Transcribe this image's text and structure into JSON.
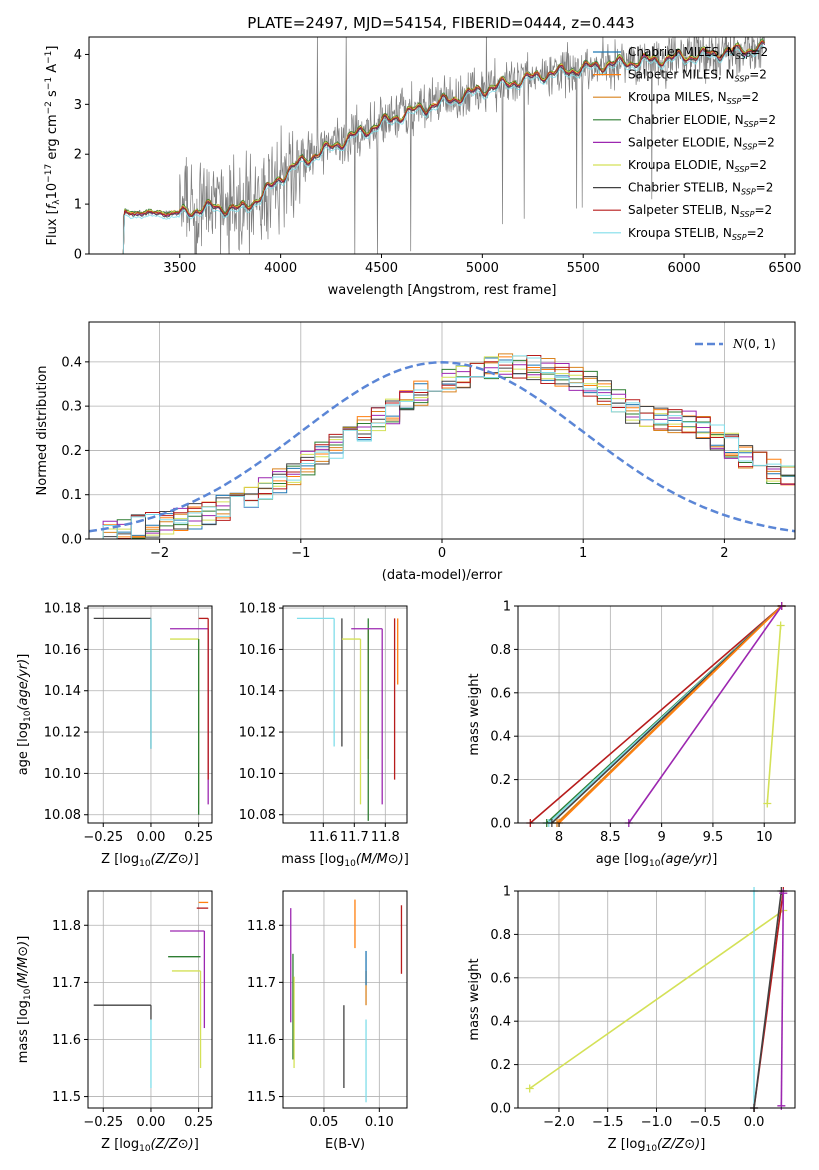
{
  "figure": {
    "title": "PLATE=2497, MJD=54154, FIBERID=0444, z=0.443"
  },
  "models": [
    {
      "label": "Chabrier MILES, N",
      "sub": "SSP",
      "suffix": "=2",
      "color": "#1f77b4"
    },
    {
      "label": "Salpeter MILES, N",
      "sub": "SSP",
      "suffix": "=2",
      "color": "#ff7f0e"
    },
    {
      "label": "Kroupa MILES, N",
      "sub": "SSP",
      "suffix": "=2",
      "color": "#d9831f"
    },
    {
      "label": "Chabrier ELODIE, N",
      "sub": "SSP",
      "suffix": "=2",
      "color": "#2e7d32"
    },
    {
      "label": "Salpeter ELODIE, N",
      "sub": "SSP",
      "suffix": "=2",
      "color": "#9c27b0"
    },
    {
      "label": "Kroupa ELODIE, N",
      "sub": "SSP",
      "suffix": "=2",
      "color": "#d4e157"
    },
    {
      "label": "Chabrier STELIB, N",
      "sub": "SSP",
      "suffix": "=2",
      "color": "#424242"
    },
    {
      "label": "Salpeter STELIB, N",
      "sub": "SSP",
      "suffix": "=2",
      "color": "#b71c1c"
    },
    {
      "label": "Kroupa STELIB, N",
      "sub": "SSP",
      "suffix": "=2",
      "color": "#80deea"
    }
  ],
  "chart_data": [
    {
      "id": "spectrum",
      "type": "line",
      "xlabel": "wavelength [Angstrom, rest frame]",
      "ylabel": "Flux [f_λ 10^-17 erg cm^-2 s^-1 A^-1]",
      "xlim": [
        3050,
        6550
      ],
      "ylim": [
        0,
        4.35
      ],
      "xticks": [
        3500,
        4000,
        4500,
        5000,
        5500,
        6000,
        6500
      ],
      "yticks": [
        0,
        1,
        2,
        3,
        4
      ],
      "grid": false,
      "legend": "top-right",
      "x_start": 3220,
      "x_end": 6400,
      "data_color": "#7f7f7f",
      "model_curve": [
        [
          3220,
          0.83
        ],
        [
          3500,
          0.82
        ],
        [
          3650,
          0.95
        ],
        [
          3800,
          0.9
        ],
        [
          3900,
          1.15
        ],
        [
          4000,
          1.55
        ],
        [
          4100,
          1.85
        ],
        [
          4250,
          2.15
        ],
        [
          4400,
          2.45
        ],
        [
          4600,
          2.8
        ],
        [
          4800,
          3.05
        ],
        [
          5000,
          3.3
        ],
        [
          5300,
          3.6
        ],
        [
          5600,
          3.8
        ],
        [
          5900,
          3.92
        ],
        [
          6200,
          4.05
        ],
        [
          6400,
          4.15
        ]
      ]
    },
    {
      "id": "residuals",
      "type": "histogram",
      "xlabel": "(data-model)/error",
      "ylabel": "Normed distribution",
      "xlim": [
        -2.5,
        2.5
      ],
      "ylim": [
        0,
        0.49
      ],
      "xticks": [
        -2,
        -1,
        0,
        1,
        2
      ],
      "yticks": [
        0.0,
        0.1,
        0.2,
        0.3,
        0.4
      ],
      "grid": true,
      "legend": "top-right",
      "gaussian_label": "N(0,1)",
      "gaussian_color": "#5b86d6",
      "bin_width": 0.1,
      "bins_from": -2.5,
      "base_values": [
        0.01,
        0.015,
        0.02,
        0.025,
        0.03,
        0.04,
        0.045,
        0.05,
        0.06,
        0.07,
        0.08,
        0.095,
        0.11,
        0.13,
        0.15,
        0.17,
        0.19,
        0.21,
        0.23,
        0.25,
        0.27,
        0.29,
        0.31,
        0.33,
        0.35,
        0.36,
        0.37,
        0.38,
        0.385,
        0.39,
        0.39,
        0.385,
        0.38,
        0.37,
        0.36,
        0.35,
        0.33,
        0.31,
        0.29,
        0.28,
        0.27,
        0.27,
        0.26,
        0.25,
        0.23,
        0.21,
        0.19,
        0.17,
        0.15,
        0.14,
        0.13,
        0.12,
        0.11,
        0.1,
        0.09,
        0.08,
        0.07,
        0.06,
        0.055,
        0.05
      ]
    },
    {
      "id": "age-vs-z",
      "type": "errorbar",
      "xlabel": "Z [log10(Z/Z⊙)]",
      "ylabel": "age [log10(age/yr)]",
      "xlim": [
        -0.33,
        0.32
      ],
      "ylim": [
        10.076,
        10.181
      ],
      "xticks": [
        -0.25,
        0.0,
        0.25
      ],
      "xtick_labels": [
        "−0.25",
        "0.00",
        "0.25"
      ],
      "yticks": [
        10.08,
        10.1,
        10.12,
        10.14,
        10.16,
        10.18
      ],
      "grid": true,
      "points": [
        {
          "model": 6,
          "x": 0.0,
          "y": 10.175,
          "xerr": [
            0.3,
            0.0
          ],
          "yerr": [
            0.063,
            0.0
          ]
        },
        {
          "model": 8,
          "x": 0.0,
          "y": 10.175,
          "xerr": [
            0.0,
            0.0
          ],
          "yerr": [
            0.063,
            0.0
          ]
        },
        {
          "model": 4,
          "x": 0.3,
          "y": 10.17,
          "xerr": [
            0.2,
            0.0
          ],
          "yerr": [
            0.085,
            0.0
          ]
        },
        {
          "model": 5,
          "x": 0.25,
          "y": 10.165,
          "xerr": [
            0.15,
            0.0
          ],
          "yerr": [
            0.08,
            0.0
          ]
        },
        {
          "model": 7,
          "x": 0.3,
          "y": 10.175,
          "xerr": [
            0.05,
            0.0
          ],
          "yerr": [
            0.078,
            0.0
          ]
        },
        {
          "model": 3,
          "x": 0.25,
          "y": 10.165,
          "xerr": [
            0.0,
            0.0
          ],
          "yerr": [
            0.085,
            0.0
          ]
        }
      ]
    },
    {
      "id": "age-vs-mass",
      "type": "errorbar",
      "xlabel": "mass [log10(M/M⊙)]",
      "ylabel": "",
      "xlim": [
        11.47,
        11.87
      ],
      "ylim": [
        10.076,
        10.181
      ],
      "xticks": [
        11.6,
        11.7,
        11.8
      ],
      "yticks": [
        10.08,
        10.1,
        10.12,
        10.14,
        10.16,
        10.18
      ],
      "grid": true,
      "points": [
        {
          "model": 8,
          "x": 11.635,
          "y": 10.175,
          "xerr": [
            0.12,
            0.0
          ],
          "yerr": [
            0.062,
            0.0
          ]
        },
        {
          "model": 6,
          "x": 11.66,
          "y": 10.175,
          "xerr": [
            0.0,
            0.0
          ],
          "yerr": [
            0.062,
            0.0
          ]
        },
        {
          "model": 5,
          "x": 11.72,
          "y": 10.165,
          "xerr": [
            0.06,
            0.0
          ],
          "yerr": [
            0.08,
            0.0
          ]
        },
        {
          "model": 2,
          "x": 11.745,
          "y": 10.17,
          "xerr": [
            0.0,
            0.0
          ],
          "yerr": [
            0.063,
            0.0
          ]
        },
        {
          "model": 3,
          "x": 11.745,
          "y": 10.175,
          "xerr": [
            0.0,
            0.0
          ],
          "yerr": [
            0.098,
            0.0
          ]
        },
        {
          "model": 4,
          "x": 11.79,
          "y": 10.17,
          "xerr": [
            0.1,
            0.0
          ],
          "yerr": [
            0.085,
            0.0
          ]
        },
        {
          "model": 7,
          "x": 11.83,
          "y": 10.175,
          "xerr": [
            0.0,
            0.0
          ],
          "yerr": [
            0.078,
            0.0
          ]
        },
        {
          "model": 1,
          "x": 11.84,
          "y": 10.175,
          "xerr": [
            0.0,
            0.0
          ],
          "yerr": [
            0.032,
            0.0
          ]
        }
      ]
    },
    {
      "id": "weight-vs-age",
      "type": "line",
      "xlabel": "age [log10(age/yr)]",
      "ylabel": "mass weight",
      "xlim": [
        7.6,
        10.3
      ],
      "ylim": [
        0,
        1
      ],
      "xticks": [
        8.0,
        8.5,
        9.0,
        9.5,
        10.0
      ],
      "yticks": [
        0.0,
        0.2,
        0.4,
        0.6,
        0.8,
        1.0
      ],
      "grid": true,
      "lines": [
        {
          "model": 7,
          "x": [
            7.72,
            10.17
          ],
          "y": [
            0.0,
            1.0
          ]
        },
        {
          "model": 3,
          "x": [
            7.88,
            10.17
          ],
          "y": [
            0.0,
            1.0
          ]
        },
        {
          "model": 8,
          "x": [
            7.9,
            10.17
          ],
          "y": [
            0.0,
            1.0
          ]
        },
        {
          "model": 6,
          "x": [
            7.93,
            10.17
          ],
          "y": [
            0.0,
            1.0
          ]
        },
        {
          "model": 2,
          "x": [
            7.98,
            10.17
          ],
          "y": [
            0.0,
            1.0
          ]
        },
        {
          "model": 1,
          "x": [
            8.0,
            10.17
          ],
          "y": [
            0.0,
            1.0
          ]
        },
        {
          "model": 4,
          "x": [
            8.68,
            10.17
          ],
          "y": [
            0.0,
            1.0
          ]
        },
        {
          "model": 5,
          "x": [
            10.03,
            10.16
          ],
          "y": [
            0.09,
            0.91
          ]
        }
      ]
    },
    {
      "id": "mass-vs-z",
      "type": "errorbar",
      "xlabel": "Z [log10(Z/Z⊙)]",
      "ylabel": "mass [log10(M/M⊙)]",
      "xlim": [
        -0.33,
        0.32
      ],
      "ylim": [
        11.48,
        11.86
      ],
      "xticks": [
        -0.25,
        0.0,
        0.25
      ],
      "xtick_labels": [
        "−0.25",
        "0.00",
        "0.25"
      ],
      "yticks": [
        11.5,
        11.6,
        11.7,
        11.8
      ],
      "grid": true,
      "points": [
        {
          "model": 6,
          "x": 0.0,
          "y": 11.66,
          "xerr": [
            0.3,
            0.0
          ],
          "yerr": [
            0.025,
            0.0
          ]
        },
        {
          "model": 8,
          "x": 0.0,
          "y": 11.635,
          "xerr": [
            0.0,
            0.0
          ],
          "yerr": [
            0.12,
            0.0
          ]
        },
        {
          "model": 4,
          "x": 0.28,
          "y": 11.79,
          "xerr": [
            0.18,
            0.0
          ],
          "yerr": [
            0.17,
            0.0
          ]
        },
        {
          "model": 3,
          "x": 0.26,
          "y": 11.745,
          "xerr": [
            0.17,
            0.0
          ],
          "yerr": [
            0.0,
            0.0
          ]
        },
        {
          "model": 5,
          "x": 0.26,
          "y": 11.72,
          "xerr": [
            0.15,
            0.0
          ],
          "yerr": [
            0.17,
            0.0
          ]
        },
        {
          "model": 7,
          "x": 0.3,
          "y": 11.83,
          "xerr": [
            0.06,
            0.0
          ],
          "yerr": [
            0.0,
            0.0
          ]
        },
        {
          "model": 1,
          "x": 0.3,
          "y": 11.84,
          "xerr": [
            0.05,
            0.0
          ],
          "yerr": [
            0.0,
            0.0
          ]
        }
      ]
    },
    {
      "id": "mass-vs-ebv",
      "type": "errorbar",
      "xlabel": "E(B-V)",
      "ylabel": "",
      "xlim": [
        0.013,
        0.125
      ],
      "ylim": [
        11.48,
        11.86
      ],
      "xticks": [
        0.05,
        0.1
      ],
      "xtick_labels": [
        "0.05",
        "0.10"
      ],
      "yticks": [
        11.5,
        11.6,
        11.7,
        11.8
      ],
      "grid": true,
      "vsegs": [
        {
          "model": 4,
          "x": 0.02,
          "y": [
            11.63,
            11.83
          ]
        },
        {
          "model": 3,
          "x": 0.022,
          "y": [
            11.565,
            11.75
          ]
        },
        {
          "model": 5,
          "x": 0.023,
          "y": [
            11.55,
            11.71
          ]
        },
        {
          "model": 6,
          "x": 0.068,
          "y": [
            11.515,
            11.66
          ]
        },
        {
          "model": 1,
          "x": 0.078,
          "y": [
            11.76,
            11.845
          ]
        },
        {
          "model": 2,
          "x": 0.088,
          "y": [
            11.66,
            11.72
          ]
        },
        {
          "model": 0,
          "x": 0.088,
          "y": [
            11.695,
            11.755
          ]
        },
        {
          "model": 8,
          "x": 0.088,
          "y": [
            11.49,
            11.635
          ]
        },
        {
          "model": 7,
          "x": 0.12,
          "y": [
            11.715,
            11.835
          ]
        }
      ]
    },
    {
      "id": "weight-vs-z",
      "type": "line",
      "xlabel": "Z [log10(Z/Z⊙)]",
      "ylabel": "mass weight",
      "xlim": [
        -2.42,
        0.42
      ],
      "ylim": [
        0,
        1
      ],
      "xticks": [
        -2.0,
        -1.5,
        -1.0,
        -0.5,
        0.0
      ],
      "xtick_labels": [
        "−2.0",
        "−1.5",
        "−1.0",
        "−0.5",
        "0.0"
      ],
      "yticks": [
        0.0,
        0.2,
        0.4,
        0.6,
        0.8,
        1.0
      ],
      "grid": true,
      "lines": [
        {
          "model": 5,
          "x": [
            -2.3,
            0.3
          ],
          "y": [
            0.09,
            0.91
          ]
        },
        {
          "model": 8,
          "x": [
            0.0,
            0.0
          ],
          "y": [
            0.0,
            1.0
          ]
        },
        {
          "model": 7,
          "x": [
            0.0,
            0.3
          ],
          "y": [
            0.0,
            1.0
          ]
        },
        {
          "model": 6,
          "x": [
            0.0,
            0.28
          ],
          "y": [
            0.0,
            1.0
          ]
        },
        {
          "model": 4,
          "x": [
            0.28,
            0.3
          ],
          "y": [
            0.01,
            0.99
          ]
        }
      ]
    }
  ]
}
